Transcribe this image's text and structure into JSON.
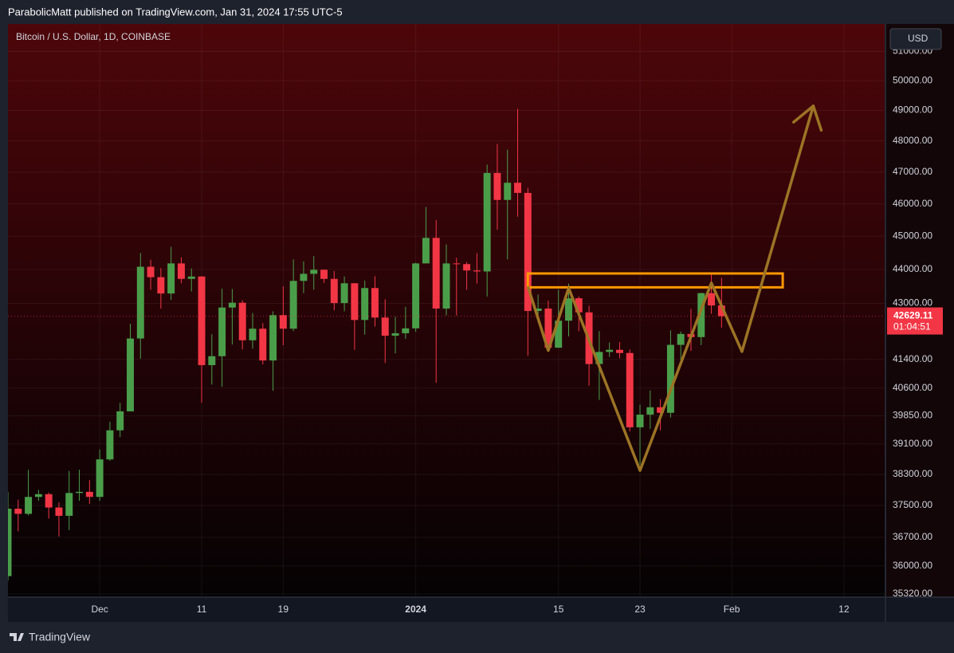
{
  "header": "ParabolicMatt published on TradingView.com, Jan 31, 2024 17:55 UTC-5",
  "footer": {
    "brand": "TradingView"
  },
  "chart_data": {
    "type": "candlestick",
    "title": "Bitcoin / U.S. Dollar, 1D, COINBASE",
    "currency": "USD",
    "countdown": "01:04:51",
    "log_scale": true,
    "grid": true,
    "up_color": "#4a9e4a",
    "down_color": "#f23645",
    "x": [
      "2023-11-22",
      "2023-11-23",
      "2023-11-24",
      "2023-11-25",
      "2023-11-26",
      "2023-11-27",
      "2023-11-28",
      "2023-11-29",
      "2023-11-30",
      "2023-12-01",
      "2023-12-02",
      "2023-12-03",
      "2023-12-04",
      "2023-12-05",
      "2023-12-06",
      "2023-12-07",
      "2023-12-08",
      "2023-12-09",
      "2023-12-10",
      "2023-12-11",
      "2023-12-12",
      "2023-12-13",
      "2023-12-14",
      "2023-12-15",
      "2023-12-16",
      "2023-12-17",
      "2023-12-18",
      "2023-12-19",
      "2023-12-20",
      "2023-12-21",
      "2023-12-22",
      "2023-12-23",
      "2023-12-24",
      "2023-12-25",
      "2023-12-26",
      "2023-12-27",
      "2023-12-28",
      "2023-12-29",
      "2023-12-30",
      "2023-12-31",
      "2024-01-01",
      "2024-01-02",
      "2024-01-03",
      "2024-01-04",
      "2024-01-05",
      "2024-01-06",
      "2024-01-07",
      "2024-01-08",
      "2024-01-09",
      "2024-01-10",
      "2024-01-11",
      "2024-01-12",
      "2024-01-13",
      "2024-01-14",
      "2024-01-15",
      "2024-01-16",
      "2024-01-17",
      "2024-01-18",
      "2024-01-19",
      "2024-01-20",
      "2024-01-21",
      "2024-01-22",
      "2024-01-23",
      "2024-01-24",
      "2024-01-25",
      "2024-01-26",
      "2024-01-27",
      "2024-01-28",
      "2024-01-29",
      "2024-01-30",
      "2024-01-31"
    ],
    "open": [
      35750,
      37420,
      37290,
      37720,
      37790,
      37450,
      37240,
      37820,
      37850,
      37720,
      38690,
      39460,
      39970,
      41990,
      44080,
      43770,
      43290,
      44180,
      43720,
      43790,
      41240,
      41490,
      42880,
      43020,
      41940,
      42270,
      41370,
      42660,
      42270,
      43660,
      43870,
      43990,
      43720,
      43010,
      43590,
      42520,
      43450,
      42590,
      42070,
      42140,
      42280,
      44180,
      44950,
      42850,
      44180,
      44160,
      43970,
      43940,
      46970,
      46120,
      46660,
      46340,
      42780,
      42850,
      41730,
      42500,
      43150,
      42740,
      41270,
      41610,
      41670,
      41580,
      39540,
      39880,
      40080,
      39930,
      41810,
      42120,
      42030,
      43300,
      42940
    ],
    "high": [
      37850,
      37650,
      38420,
      37900,
      37830,
      37580,
      38390,
      38420,
      38150,
      38950,
      39690,
      40200,
      42410,
      44490,
      44290,
      44040,
      44680,
      44360,
      44030,
      43800,
      42110,
      43430,
      43420,
      43090,
      42720,
      42430,
      42770,
      43500,
      44300,
      44240,
      44400,
      44000,
      43950,
      43790,
      43600,
      43670,
      43800,
      43120,
      42610,
      42900,
      44200,
      45900,
      45500,
      44750,
      44350,
      44220,
      44490,
      47240,
      47900,
      47720,
      49050,
      46500,
      43260,
      43080,
      43400,
      43580,
      43200,
      42930,
      42200,
      41880,
      41890,
      41680,
      40150,
      40540,
      40300,
      42220,
      42190,
      42840,
      43310,
      43880,
      43750
    ],
    "low": [
      35640,
      36850,
      37250,
      37620,
      37170,
      36720,
      36880,
      37620,
      37540,
      37620,
      38650,
      39280,
      39970,
      41420,
      43400,
      42850,
      43100,
      43590,
      43350,
      40200,
      40700,
      40640,
      41820,
      41680,
      41700,
      41260,
      40530,
      41800,
      42200,
      43300,
      43400,
      43600,
      42800,
      42770,
      41670,
      42100,
      42330,
      41300,
      41570,
      41980,
      42180,
      44180,
      40750,
      42650,
      42650,
      43400,
      43580,
      43200,
      45200,
      44300,
      45600,
      41500,
      42440,
      41720,
      41720,
      42050,
      42200,
      40670,
      40280,
      41470,
      41430,
      39430,
      38550,
      39500,
      39460,
      39800,
      41390,
      41640,
      41800,
      42700,
      42300
    ],
    "close": [
      37420,
      37290,
      37720,
      37790,
      37450,
      37240,
      37820,
      37850,
      37720,
      38690,
      39460,
      39970,
      41990,
      44080,
      43770,
      43290,
      44180,
      43720,
      43790,
      41240,
      41490,
      42880,
      43020,
      41940,
      42270,
      41370,
      42660,
      42270,
      43660,
      43870,
      43990,
      43720,
      43010,
      43590,
      42520,
      43450,
      42590,
      42070,
      42140,
      42280,
      44180,
      44950,
      42850,
      44180,
      44160,
      43970,
      43940,
      46970,
      46120,
      46660,
      46340,
      42780,
      42850,
      41730,
      42500,
      43150,
      42740,
      41270,
      41610,
      41670,
      41580,
      39540,
      39880,
      40080,
      39930,
      41810,
      42120,
      42030,
      43300,
      42940,
      42629.11
    ],
    "xlim": [
      "2023-11-22",
      "2024-02-16"
    ],
    "xticks": [
      {
        "value": "2023-12-01",
        "label": "Dec"
      },
      {
        "value": "2023-12-11",
        "label": "11"
      },
      {
        "value": "2023-12-19",
        "label": "19"
      },
      {
        "value": "2024-01-01",
        "label": "2024"
      },
      {
        "value": "2024-01-15",
        "label": "15"
      },
      {
        "value": "2024-01-23",
        "label": "23"
      },
      {
        "value": "2024-02-01",
        "label": "Feb"
      },
      {
        "value": "2024-02-12",
        "label": "12"
      }
    ],
    "ylim": [
      35263,
      51957
    ],
    "yticks": [
      {
        "value": 35320,
        "label": "35320.00"
      },
      {
        "value": 36000,
        "label": "36000.00"
      },
      {
        "value": 36700,
        "label": "36700.00"
      },
      {
        "value": 37500,
        "label": "37500.00"
      },
      {
        "value": 38300,
        "label": "38300.00"
      },
      {
        "value": 39100,
        "label": "39100.00"
      },
      {
        "value": 39850,
        "label": "39850.00"
      },
      {
        "value": 40600,
        "label": "40600.00"
      },
      {
        "value": 41400,
        "label": "41400.00"
      },
      {
        "value": 43000,
        "label": "43000.00"
      },
      {
        "value": 44000,
        "label": "44000.00"
      },
      {
        "value": 45000,
        "label": "45000.00"
      },
      {
        "value": 46000,
        "label": "46000.00"
      },
      {
        "value": 47000,
        "label": "47000.00"
      },
      {
        "value": 48000,
        "label": "48000.00"
      },
      {
        "value": 49000,
        "label": "49000.00"
      },
      {
        "value": 50000,
        "label": "50000.00"
      },
      {
        "value": 51000,
        "label": "51000.00"
      }
    ],
    "zone": {
      "color": "#ff9800",
      "x": [
        "2024-01-12",
        "2024-02-06"
      ],
      "y": [
        43470,
        43880
      ]
    },
    "projection": {
      "color": "#9c7425",
      "x": [
        "2024-01-12",
        "2024-01-14",
        "2024-01-16",
        "2024-01-23",
        "2024-01-30",
        "2024-02-02",
        "2024-02-09"
      ],
      "y": [
        43500,
        41650,
        43450,
        38400,
        43600,
        41620,
        49150
      ]
    }
  }
}
